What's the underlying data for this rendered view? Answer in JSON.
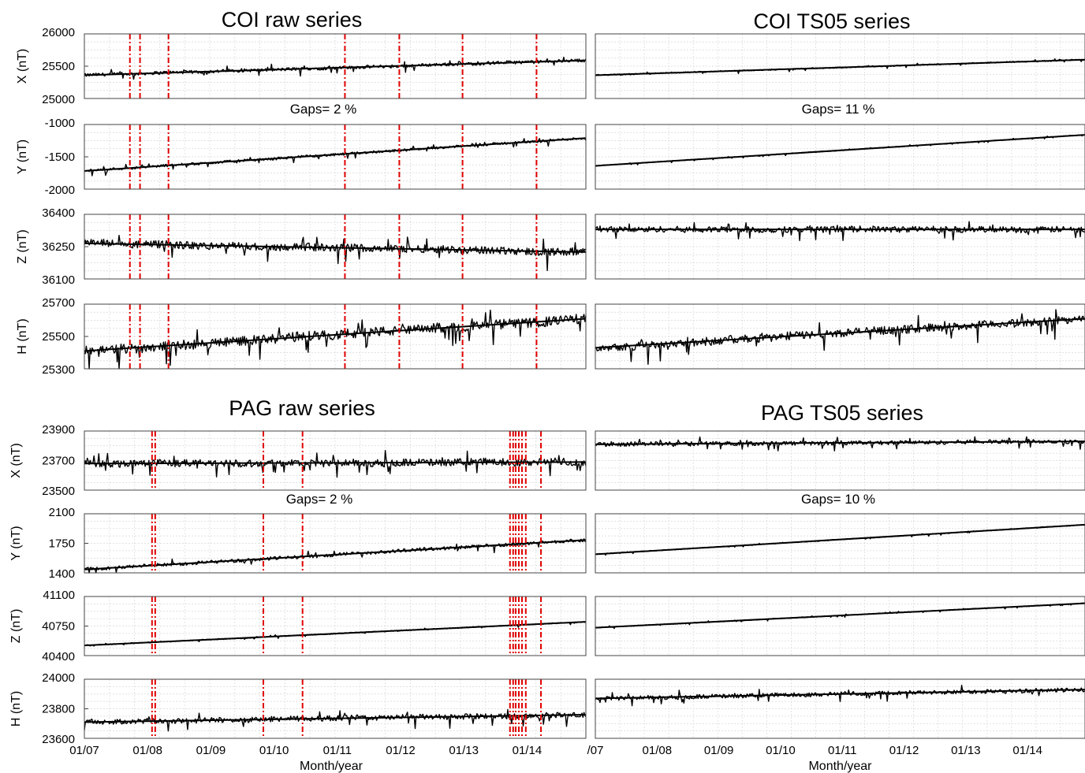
{
  "chart_data": [
    {
      "type": "line",
      "title": "COI raw series",
      "gaps_text": "Gaps= 2 %",
      "xlabel": "",
      "x_range": [
        2007.0,
        2014.93
      ],
      "gap_dates": [
        2007.72,
        2007.88,
        2008.33,
        2011.12,
        2011.98,
        2012.98,
        2014.15
      ],
      "panels": [
        {
          "ylabel": "X (nT)",
          "yticks": [
            "26000",
            "25500",
            "25000"
          ],
          "ylim": [
            25000,
            26000
          ],
          "y_start": 25360,
          "y_end": 25590,
          "noise": 25
        },
        {
          "ylabel": "Y (nT)",
          "yticks": [
            "-1000",
            "-1500",
            "-2000"
          ],
          "ylim": [
            -2000,
            -1000
          ],
          "y_start": -1720,
          "y_end": -1210,
          "noise": 20
        },
        {
          "ylabel": "Z (nT)",
          "yticks": [
            "36400",
            "36250",
            "36100"
          ],
          "ylim": [
            36100,
            36400
          ],
          "y_start": 36265,
          "y_end": 36225,
          "noise": 18
        },
        {
          "ylabel": "H (nT)",
          "yticks": [
            "25700",
            "25500",
            "25300"
          ],
          "ylim": [
            25300,
            25700
          ],
          "y_start": 25410,
          "y_end": 25610,
          "noise": 30
        }
      ]
    },
    {
      "type": "line",
      "title": "COI TS05 series",
      "gaps_text": "Gaps= 11 %",
      "xlabel": "",
      "x_range": [
        2007.0,
        2014.93
      ],
      "gap_dates": [],
      "panels": [
        {
          "ylabel": "",
          "yticks": [],
          "ylim": [
            25000,
            26000
          ],
          "y_start": 25360,
          "y_end": 25600,
          "noise": 10
        },
        {
          "ylabel": "",
          "yticks": [],
          "ylim": [
            -2000,
            -1000
          ],
          "y_start": -1640,
          "y_end": -1160,
          "noise": 6
        },
        {
          "ylabel": "",
          "yticks": [],
          "ylim": [
            36100,
            36400
          ],
          "y_start": 36330,
          "y_end": 36330,
          "noise": 14
        },
        {
          "ylabel": "",
          "yticks": [],
          "ylim": [
            25300,
            25700
          ],
          "y_start": 25430,
          "y_end": 25610,
          "noise": 25
        }
      ]
    },
    {
      "type": "line",
      "title": "PAG raw series",
      "gaps_text": "Gaps= 2 %",
      "xlabel": "Month/year",
      "x_range": [
        2007.0,
        2014.93
      ],
      "xticks": [
        "01/07",
        "01/08",
        "01/09",
        "01/10",
        "01/11",
        "01/12",
        "01/13",
        "01/14"
      ],
      "gap_dates": [
        2008.07,
        2008.12,
        2009.83,
        2010.45,
        2013.73,
        2013.78,
        2013.82,
        2013.87,
        2013.92,
        2013.98,
        2014.22
      ],
      "panels": [
        {
          "ylabel": "X (nT)",
          "yticks": [
            "23900",
            "23700",
            "23500"
          ],
          "ylim": [
            23500,
            23900
          ],
          "y_start": 23680,
          "y_end": 23690,
          "noise": 25
        },
        {
          "ylabel": "Y (nT)",
          "yticks": [
            "2100",
            "1750",
            "1400"
          ],
          "ylim": [
            1400,
            2100
          ],
          "y_start": 1440,
          "y_end": 1790,
          "noise": 20
        },
        {
          "ylabel": "Z (nT)",
          "yticks": [
            "41100",
            "40750",
            "40400"
          ],
          "ylim": [
            40400,
            41100
          ],
          "y_start": 40520,
          "y_end": 40800,
          "noise": 6
        },
        {
          "ylabel": "H (nT)",
          "yticks": [
            "24000",
            "23800",
            "23600"
          ],
          "ylim": [
            23600,
            24000
          ],
          "y_start": 23710,
          "y_end": 23760,
          "noise": 18
        }
      ]
    },
    {
      "type": "line",
      "title": "PAG TS05 series",
      "gaps_text": "Gaps= 10 %",
      "xlabel": "Month/year",
      "x_range": [
        2007.0,
        2014.93
      ],
      "xticks": [
        "/07",
        "01/08",
        "01/09",
        "01/10",
        "01/11",
        "01/12",
        "01/13",
        "01/14"
      ],
      "gap_dates": [],
      "panels": [
        {
          "ylabel": "",
          "yticks": [],
          "ylim": [
            23500,
            23900
          ],
          "y_start": 23810,
          "y_end": 23830,
          "noise": 14
        },
        {
          "ylabel": "",
          "yticks": [],
          "ylim": [
            1400,
            2100
          ],
          "y_start": 1620,
          "y_end": 1970,
          "noise": 5
        },
        {
          "ylabel": "",
          "yticks": [],
          "ylim": [
            40400,
            41100
          ],
          "y_start": 40730,
          "y_end": 41020,
          "noise": 5
        },
        {
          "ylabel": "",
          "yticks": [],
          "ylim": [
            23600,
            24000
          ],
          "y_start": 23870,
          "y_end": 23930,
          "noise": 14
        }
      ]
    }
  ]
}
